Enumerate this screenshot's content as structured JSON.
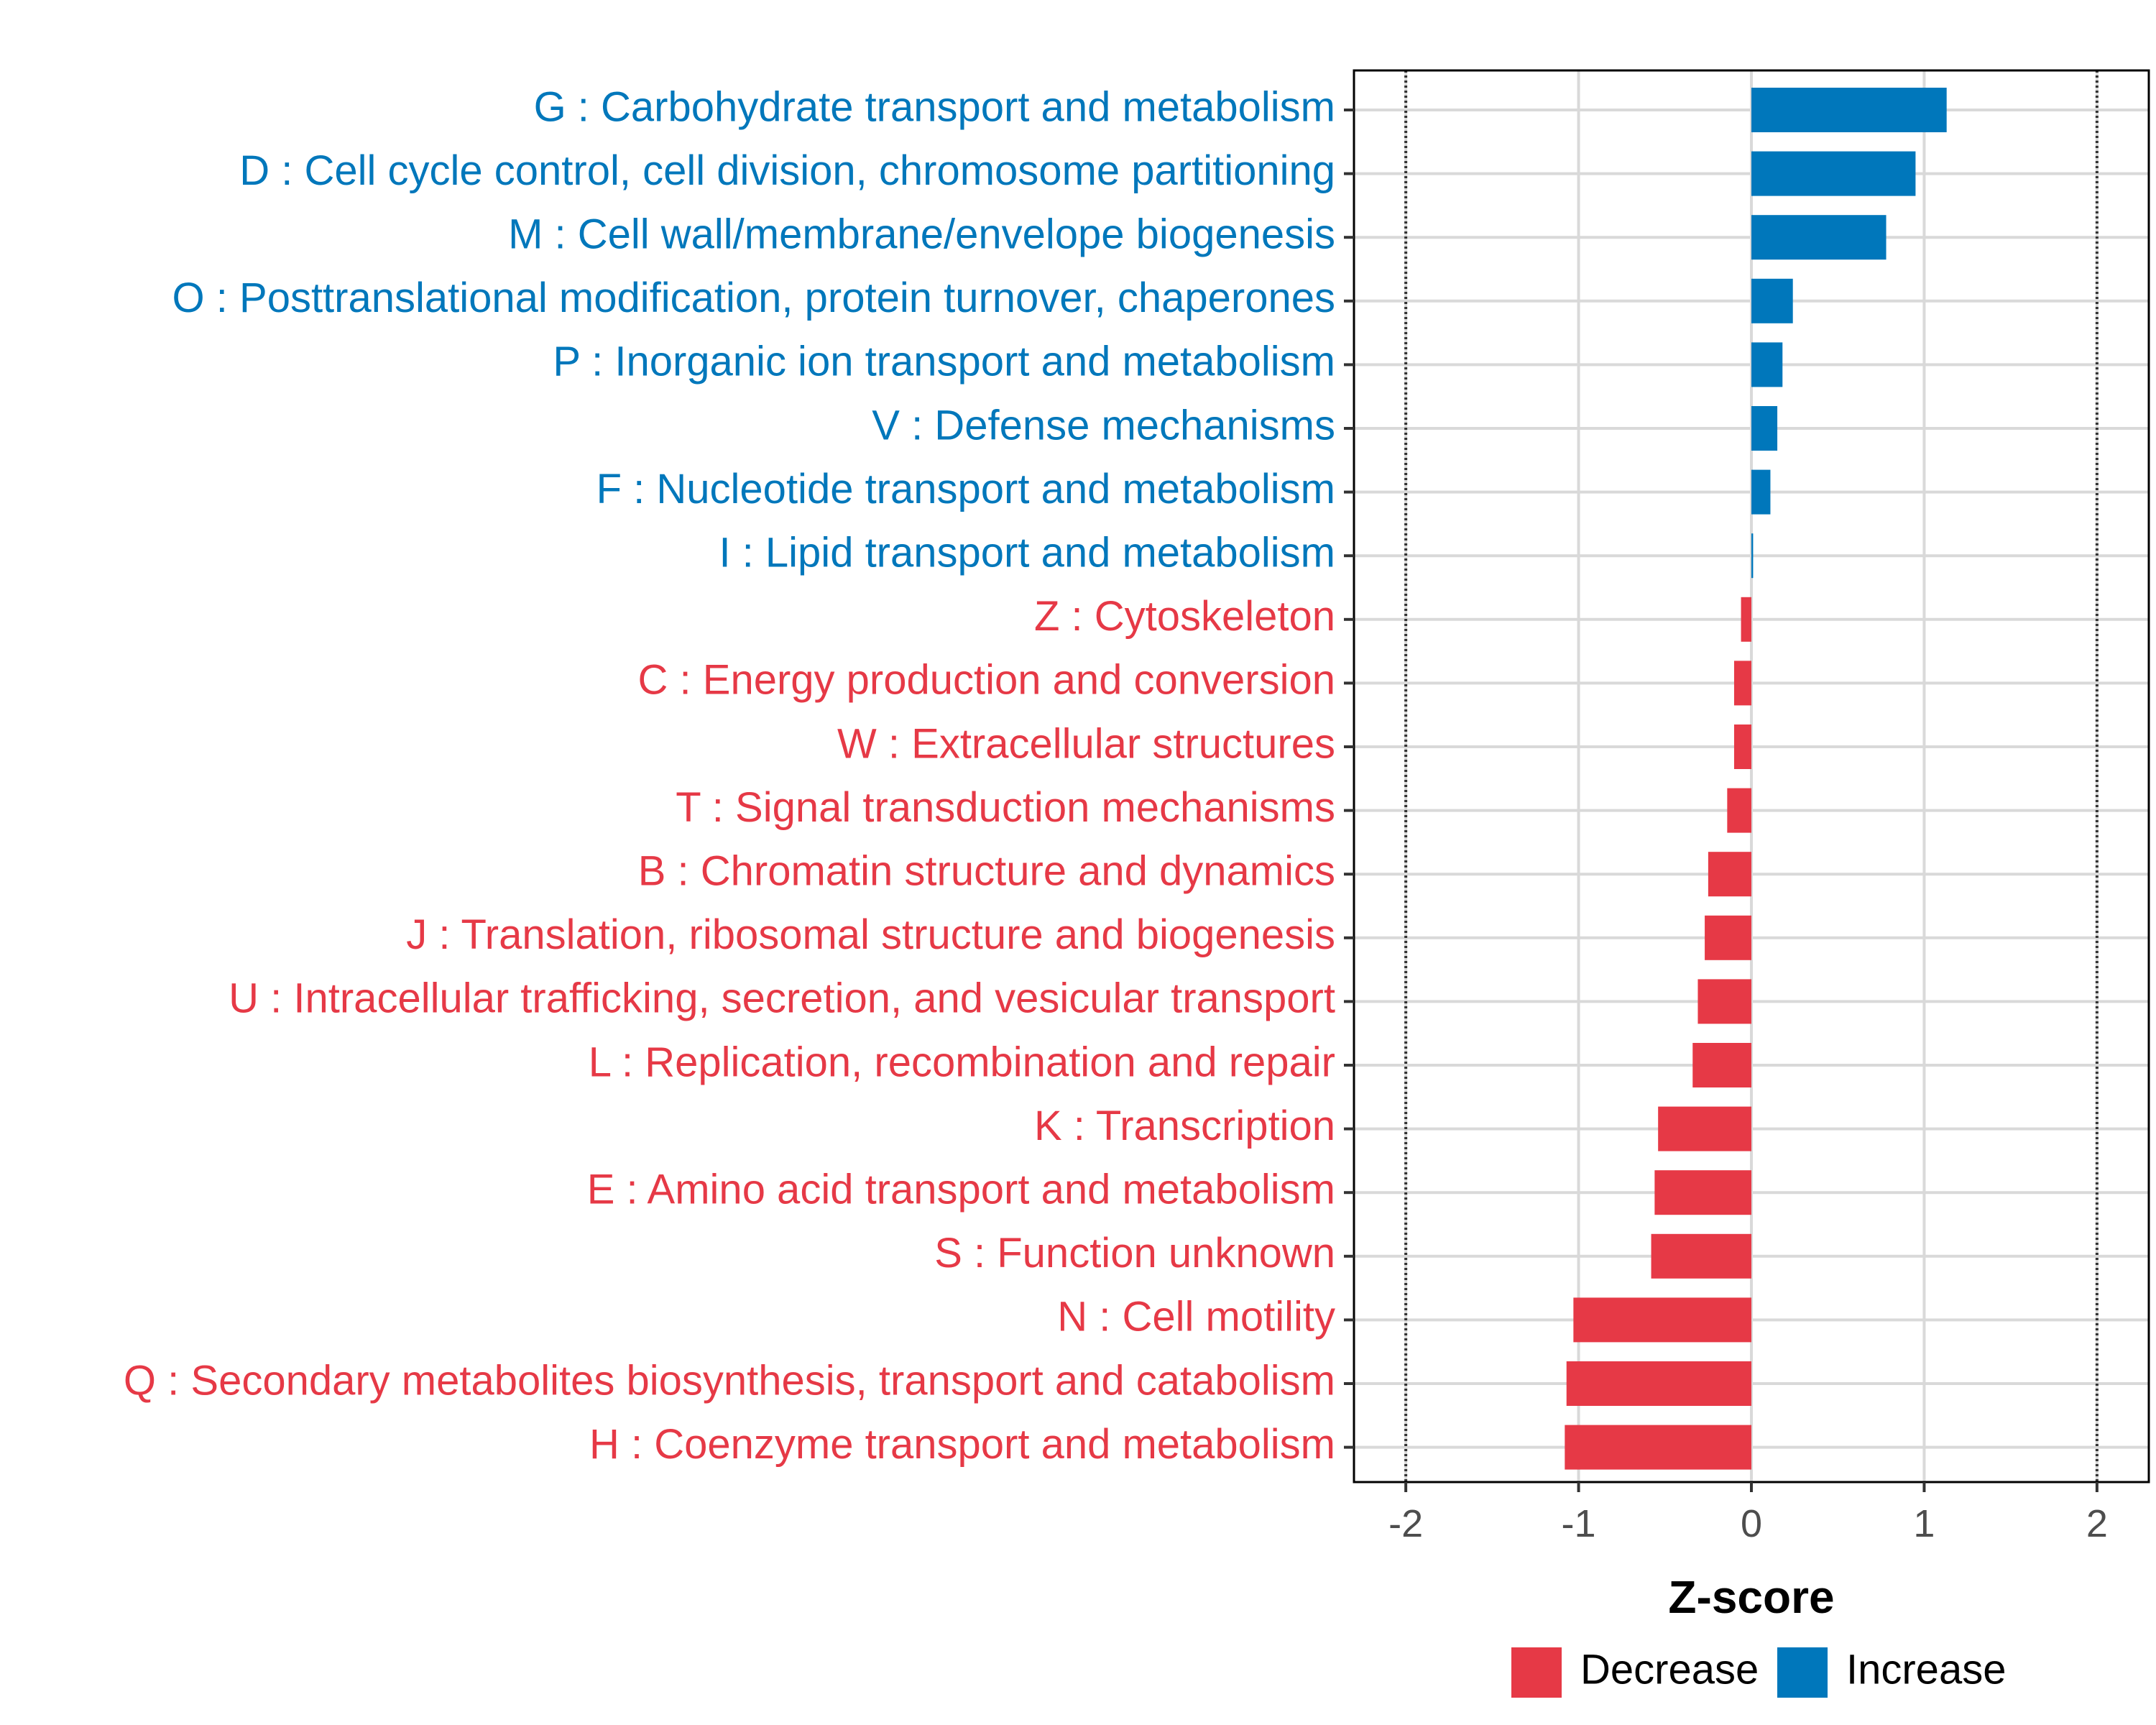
{
  "colors": {
    "increase": "#0077BB",
    "decrease": "#E63946"
  },
  "chart_data": {
    "type": "bar",
    "orientation": "horizontal",
    "xlabel": "Z-score",
    "xlim": [
      -2.3,
      2.3
    ],
    "x_ticks": [
      -2,
      -1,
      0,
      1,
      2
    ],
    "x_tick_labels": [
      "-2",
      "-1",
      "0",
      "1",
      "2"
    ],
    "reference_lines": [
      -2,
      2
    ],
    "grid": true,
    "legend_position": "bottom",
    "legend": [
      {
        "key": "decrease",
        "label": "Decrease"
      },
      {
        "key": "increase",
        "label": "Increase"
      }
    ],
    "categories": [
      {
        "label": "G : Carbohydrate transport and metabolism",
        "value": 1.13,
        "group": "increase"
      },
      {
        "label": "D : Cell cycle control, cell division, chromosome partitioning",
        "value": 0.95,
        "group": "increase"
      },
      {
        "label": "M : Cell wall/membrane/envelope biogenesis",
        "value": 0.78,
        "group": "increase"
      },
      {
        "label": "O : Posttranslational modification, protein turnover, chaperones",
        "value": 0.24,
        "group": "increase"
      },
      {
        "label": "P : Inorganic ion transport and metabolism",
        "value": 0.18,
        "group": "increase"
      },
      {
        "label": "V : Defense mechanisms",
        "value": 0.15,
        "group": "increase"
      },
      {
        "label": "F : Nucleotide transport and metabolism",
        "value": 0.11,
        "group": "increase"
      },
      {
        "label": "I : Lipid transport and metabolism",
        "value": 0.01,
        "group": "increase"
      },
      {
        "label": "Z : Cytoskeleton",
        "value": -0.06,
        "group": "decrease"
      },
      {
        "label": "C : Energy production and conversion",
        "value": -0.1,
        "group": "decrease"
      },
      {
        "label": "W : Extracellular structures",
        "value": -0.1,
        "group": "decrease"
      },
      {
        "label": "T : Signal transduction mechanisms",
        "value": -0.14,
        "group": "decrease"
      },
      {
        "label": "B : Chromatin structure and dynamics",
        "value": -0.25,
        "group": "decrease"
      },
      {
        "label": "J : Translation, ribosomal structure and biogenesis",
        "value": -0.27,
        "group": "decrease"
      },
      {
        "label": "U : Intracellular trafficking, secretion, and vesicular transport",
        "value": -0.31,
        "group": "decrease"
      },
      {
        "label": "L : Replication, recombination and repair",
        "value": -0.34,
        "group": "decrease"
      },
      {
        "label": "K : Transcription",
        "value": -0.54,
        "group": "decrease"
      },
      {
        "label": "E : Amino acid transport and metabolism",
        "value": -0.56,
        "group": "decrease"
      },
      {
        "label": "S : Function unknown",
        "value": -0.58,
        "group": "decrease"
      },
      {
        "label": "N : Cell motility",
        "value": -1.03,
        "group": "decrease"
      },
      {
        "label": "Q : Secondary metabolites biosynthesis, transport and catabolism",
        "value": -1.07,
        "group": "decrease"
      },
      {
        "label": "H : Coenzyme transport and metabolism",
        "value": -1.08,
        "group": "decrease"
      }
    ]
  }
}
